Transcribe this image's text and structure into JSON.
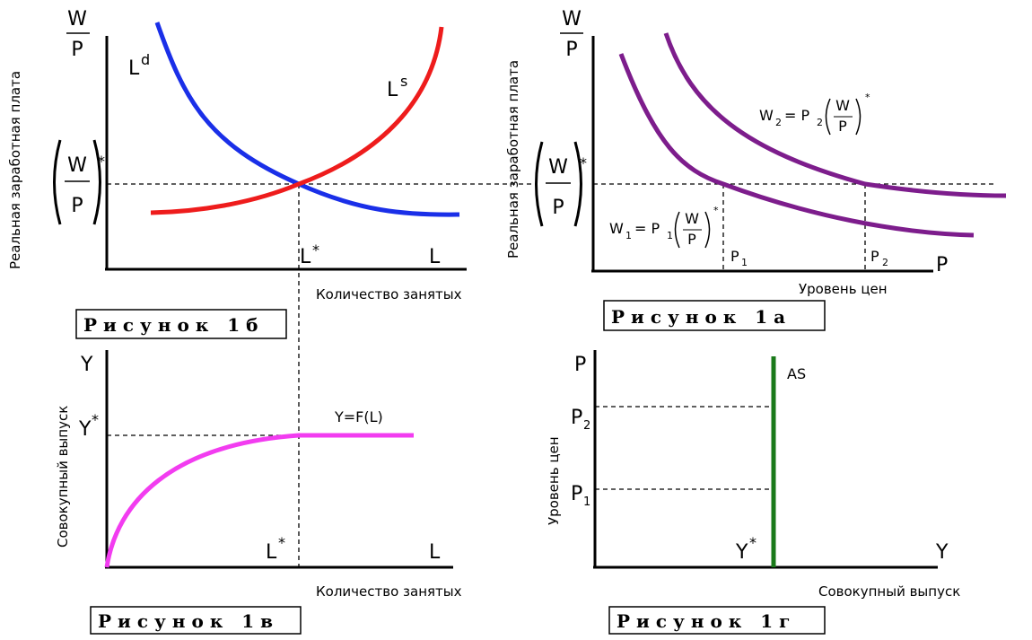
{
  "colors": {
    "demand_curve": "#1a2fe8",
    "supply_curve": "#ee1c1c",
    "wage_curves": "#7d1d8c",
    "production_curve": "#f23cf0",
    "as_curve": "#1a7a1a",
    "axes": "#000000"
  },
  "fig_1b": {
    "caption": "Рисунок 1б",
    "y_axis_title": "Реальная заработная плата",
    "y_top_num": "W",
    "y_top_den": "P",
    "y_star_num": "W",
    "y_star_den": "P",
    "star": "*",
    "demand_label": "L",
    "demand_sup": "d",
    "supply_label": "L",
    "supply_sup": "s",
    "x_star": "L",
    "x_end": "L",
    "x_axis_title": "Количество занятых"
  },
  "fig_1a": {
    "caption": "Рисунок 1а",
    "y_axis_title": "Реальная заработная плата",
    "y_top_num": "W",
    "y_top_den": "P",
    "y_star_num": "W",
    "y_star_den": "P",
    "star": "*",
    "w2_eq_left": "W",
    "w2_sub": "2",
    "w2_eq_mid": "= P",
    "w2_p_sub": "2",
    "w2_frac_num": "W",
    "w2_frac_den": "P",
    "w1_eq_left": "W",
    "w1_sub": "1",
    "w1_eq_mid": "= P",
    "w1_p_sub": "1",
    "w1_frac_num": "W",
    "w1_frac_den": "P",
    "p1": "P",
    "p1_sub": "1",
    "p2": "P",
    "p2_sub": "2",
    "x_end": "P",
    "x_axis_title": "Уровень цен"
  },
  "fig_1v": {
    "caption": "Рисунок 1в",
    "y_axis_title": "Совокупный выпуск",
    "y_top": "Y",
    "y_star": "Y",
    "star": "*",
    "curve_label": "Y=F(L)",
    "x_star": "L",
    "x_end": "L",
    "x_axis_title": "Количество занятых"
  },
  "fig_1g": {
    "caption": "Рисунок 1г",
    "y_axis_title": "Уровень цен",
    "y_top": "P",
    "p2": "P",
    "p2_sub": "2",
    "p1": "P",
    "p1_sub": "1",
    "as_label": "AS",
    "x_star": "Y",
    "star": "*",
    "x_end": "Y",
    "x_axis_title": "Совокупный выпуск"
  }
}
